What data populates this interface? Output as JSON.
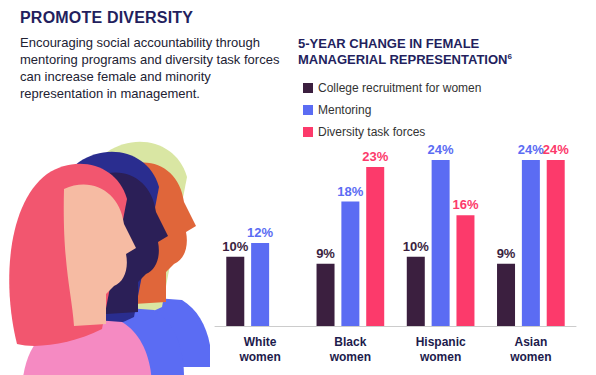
{
  "page": {
    "heading": "PROMOTE DIVERSITY",
    "text": "Encouraging social accountability through mentoring programs and diversity task forces can increase female and minority representation in management."
  },
  "chart_data": {
    "type": "bar",
    "title": "5-YEAR CHANGE IN FEMALE MANAGERIAL REPRESENTATION",
    "title_footnote": "6",
    "categories": [
      "White women",
      "Black women",
      "Hispanic women",
      "Asian women"
    ],
    "series": [
      {
        "name": "College recruitment for women",
        "color": "#3b1f3f",
        "values": [
          10,
          9,
          10,
          9
        ],
        "value_labels": [
          "10%",
          "9%",
          "10%",
          "9%"
        ]
      },
      {
        "name": "Mentoring",
        "color": "#5b6cf3",
        "values": [
          12,
          18,
          24,
          24
        ],
        "value_labels": [
          "12%",
          "18%",
          "24%",
          "24%"
        ]
      },
      {
        "name": "Diversity task forces",
        "color": "#fc3a6b",
        "values": [
          null,
          23,
          16,
          24
        ],
        "value_labels": [
          null,
          "23%",
          "16%",
          "24%"
        ]
      }
    ],
    "ylim": [
      0,
      24
    ],
    "legend": "top-left",
    "data_labels": true,
    "tick_labels": false,
    "grid": false
  }
}
